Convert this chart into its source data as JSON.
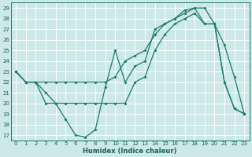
{
  "xlabel": "Humidex (Indice chaleur)",
  "background_color": "#cde8e8",
  "grid_color": "#ffffff",
  "line_color": "#1a7a6e",
  "xlim": [
    -0.5,
    23.5
  ],
  "ylim": [
    16.5,
    29.5
  ],
  "yticks": [
    17,
    18,
    19,
    20,
    21,
    22,
    23,
    24,
    25,
    26,
    27,
    28,
    29
  ],
  "xticks": [
    0,
    1,
    2,
    3,
    4,
    5,
    6,
    7,
    8,
    9,
    10,
    11,
    12,
    13,
    14,
    15,
    16,
    17,
    18,
    19,
    20,
    21,
    22,
    23
  ],
  "line1_x": [
    0,
    1,
    2,
    3,
    4,
    5,
    6,
    7,
    8,
    9,
    10,
    11,
    12,
    13,
    14,
    15,
    16,
    17,
    18,
    19,
    20,
    21,
    22,
    23
  ],
  "line1_y": [
    23.0,
    22.0,
    22.0,
    21.0,
    20.0,
    18.5,
    17.0,
    16.8,
    17.5,
    21.5,
    25.0,
    22.0,
    23.5,
    24.0,
    27.0,
    27.5,
    28.0,
    28.5,
    29.0,
    29.0,
    27.5,
    25.5,
    22.5,
    19.0
  ],
  "line2_x": [
    0,
    1,
    2,
    3,
    4,
    5,
    6,
    7,
    8,
    9,
    10,
    11,
    12,
    13,
    14,
    15,
    16,
    17,
    18,
    19,
    20,
    21,
    22,
    23
  ],
  "line2_y": [
    23.0,
    22.0,
    22.0,
    20.0,
    20.0,
    20.0,
    20.0,
    20.0,
    20.0,
    20.0,
    20.0,
    20.0,
    22.0,
    22.5,
    25.0,
    26.5,
    27.5,
    28.0,
    28.5,
    27.5,
    27.5,
    22.0,
    19.5,
    19.0
  ],
  "line3_x": [
    0,
    1,
    2,
    3,
    4,
    5,
    6,
    7,
    8,
    9,
    10,
    11,
    12,
    13,
    14,
    15,
    16,
    17,
    18,
    19,
    20,
    21,
    22,
    23
  ],
  "line3_y": [
    23.0,
    22.0,
    22.0,
    22.0,
    22.0,
    22.0,
    22.0,
    22.0,
    22.0,
    22.0,
    22.5,
    24.0,
    24.5,
    25.0,
    26.5,
    27.5,
    28.0,
    28.8,
    29.0,
    27.5,
    27.5,
    22.0,
    19.5,
    19.0
  ]
}
